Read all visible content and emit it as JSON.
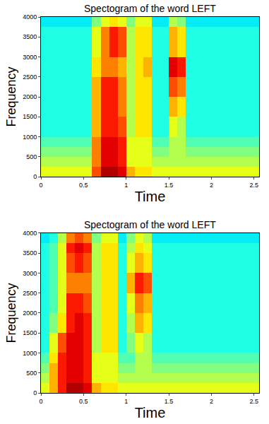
{
  "chart_data": [
    {
      "type": "heatmap",
      "title": "Spectogram of the word LEFT",
      "x_label": "Time",
      "y_label": "Frequency",
      "color": "Jet",
      "xlim": [
        0,
        2.56
      ],
      "ylim": [
        0,
        4000
      ],
      "xticks": [
        0,
        0.5,
        1,
        1.5,
        2,
        2.5
      ],
      "yticks": [
        0,
        500,
        1000,
        1500,
        2000,
        2500,
        3000,
        3500,
        4000
      ],
      "zlim": [
        0,
        10
      ],
      "x": [
        0.05,
        0.15,
        0.25,
        0.35,
        0.45,
        0.55,
        0.65,
        0.75,
        0.85,
        0.95,
        1.05,
        1.15,
        1.25,
        1.35,
        1.45,
        1.55,
        1.65,
        1.75,
        1.85,
        1.95,
        2.05,
        2.15,
        2.25,
        2.35,
        2.45,
        2.55
      ],
      "y": [
        125,
        375,
        625,
        875,
        1125,
        1375,
        1625,
        1875,
        2125,
        2375,
        2625,
        2875,
        3125,
        3375,
        3625,
        3875
      ],
      "z": [
        [
          6,
          6,
          6,
          6,
          6,
          6,
          8,
          9.5,
          9.5,
          9,
          7,
          6.5,
          6.5,
          6,
          6,
          6,
          6,
          6,
          6,
          6,
          6,
          6,
          6,
          6,
          6,
          6
        ],
        [
          5.5,
          5.5,
          5.5,
          5.5,
          5.5,
          5.5,
          7.5,
          9,
          9,
          8.5,
          6,
          6,
          6,
          5.5,
          5.5,
          5.5,
          5.5,
          5.5,
          5.5,
          5.5,
          5.5,
          5.5,
          5.5,
          5.5,
          5.5,
          5.5
        ],
        [
          5,
          5,
          5,
          5,
          5,
          5,
          7.5,
          9,
          9,
          8.5,
          6,
          6,
          6,
          5,
          5,
          5.5,
          5.5,
          5,
          5,
          5,
          5,
          5,
          5,
          5,
          5,
          5
        ],
        [
          4.5,
          4.5,
          4.5,
          4.5,
          4.5,
          4.5,
          7.5,
          9,
          9,
          8.5,
          6,
          6,
          6,
          4.5,
          4.5,
          5.5,
          5.5,
          4.5,
          4.5,
          4.5,
          4.5,
          4.5,
          4.5,
          4.5,
          4.5,
          4.5
        ],
        [
          4,
          4,
          4,
          4,
          4,
          4,
          7,
          8.5,
          8.5,
          8,
          5.5,
          6.5,
          6.5,
          4,
          4,
          6,
          5.5,
          4,
          4,
          4,
          4,
          4,
          4,
          4,
          4,
          4
        ],
        [
          4,
          4,
          4,
          4,
          4,
          4,
          7,
          8.5,
          8.5,
          8,
          5.5,
          6.5,
          6.5,
          4,
          4,
          6,
          5.5,
          4,
          4,
          4,
          4,
          4,
          4,
          4,
          4,
          4
        ],
        [
          4,
          4,
          4,
          4,
          4,
          4,
          7,
          8.5,
          8.5,
          7.5,
          5.5,
          6.5,
          6.5,
          4,
          4,
          7,
          6.5,
          4,
          4,
          4,
          4,
          4,
          4,
          4,
          4,
          4
        ],
        [
          4,
          4,
          4,
          4,
          4,
          4,
          7,
          8.5,
          8.5,
          7.5,
          5.5,
          6.5,
          6.5,
          4,
          4,
          7,
          6.5,
          4,
          4,
          4,
          4,
          4,
          4,
          4,
          4,
          4
        ],
        [
          4,
          4,
          4,
          4,
          4,
          4,
          7,
          8.5,
          8.5,
          7.5,
          5.5,
          6.5,
          6.5,
          4,
          4,
          8,
          7.5,
          4,
          4,
          4,
          4,
          4,
          4,
          4,
          4,
          4
        ],
        [
          4,
          4,
          4,
          4,
          4,
          4,
          7,
          8.5,
          8.5,
          7.5,
          5.5,
          6.5,
          6.5,
          4,
          4,
          8,
          7.5,
          4,
          4,
          4,
          4,
          4,
          4,
          4,
          4,
          4
        ],
        [
          4,
          4,
          4,
          4,
          4,
          4,
          6.5,
          7.5,
          7.5,
          7,
          5.5,
          6.5,
          7,
          4,
          4,
          9,
          8.5,
          4,
          4,
          4,
          4,
          4,
          4,
          4,
          4,
          4
        ],
        [
          4,
          4,
          4,
          4,
          4,
          4,
          6.5,
          7.5,
          7.5,
          7,
          5.5,
          6.5,
          7,
          4,
          4,
          9,
          8.5,
          4,
          4,
          4,
          4,
          4,
          4,
          4,
          4,
          4
        ],
        [
          4,
          4,
          4,
          4,
          4,
          4,
          6,
          7.5,
          8.5,
          8,
          5.5,
          6.5,
          6.5,
          4,
          4,
          7,
          6.5,
          4,
          4,
          4,
          4,
          4,
          4,
          4,
          4,
          4
        ],
        [
          4,
          4,
          4,
          4,
          4,
          4,
          6,
          7.5,
          8.5,
          8,
          5.5,
          6.5,
          6.5,
          4,
          4,
          7,
          6.5,
          4,
          4,
          4,
          4,
          4,
          4,
          4,
          4,
          4
        ],
        [
          4,
          4,
          4,
          4,
          4,
          4,
          6,
          7.5,
          8.5,
          8,
          5.5,
          6.5,
          6.5,
          4,
          4,
          7,
          6.5,
          4,
          4,
          4,
          4,
          4,
          4,
          4,
          4,
          4
        ],
        [
          3.5,
          3.5,
          3.5,
          3.5,
          3.5,
          3.5,
          5,
          6,
          6.5,
          6,
          5,
          6,
          6,
          3.5,
          3.5,
          5.5,
          5,
          3.5,
          3.5,
          3.5,
          3.5,
          3.5,
          3.5,
          3.5,
          3.5,
          3.5
        ]
      ]
    },
    {
      "type": "heatmap",
      "title": "Spectogram of the word LEFT",
      "x_label": "Time",
      "y_label": "Frequency",
      "color": "Jet",
      "xlim": [
        0,
        2.56
      ],
      "ylim": [
        0,
        4000
      ],
      "xticks": [
        0,
        0.5,
        1,
        1.5,
        2,
        2.5
      ],
      "yticks": [
        0,
        500,
        1000,
        1500,
        2000,
        2500,
        3000,
        3500,
        4000
      ],
      "zlim": [
        0,
        10
      ],
      "x": [
        0.05,
        0.15,
        0.25,
        0.35,
        0.45,
        0.55,
        0.65,
        0.75,
        0.85,
        0.95,
        1.05,
        1.15,
        1.25,
        1.35,
        1.45,
        1.55,
        1.65,
        1.75,
        1.85,
        1.95,
        2.05,
        2.15,
        2.25,
        2.35,
        2.45,
        2.55
      ],
      "y": [
        125,
        375,
        625,
        875,
        1125,
        1375,
        1625,
        1875,
        2125,
        2375,
        2625,
        2875,
        3125,
        3375,
        3625,
        3875
      ],
      "z": [
        [
          6,
          7,
          8.5,
          9.5,
          9.5,
          9,
          7,
          6.5,
          6.5,
          6,
          6,
          6,
          6,
          6,
          6,
          6,
          6,
          6,
          6,
          6,
          6,
          6,
          6,
          6,
          6,
          6
        ],
        [
          5.5,
          7,
          8.5,
          9,
          9,
          8.5,
          6,
          6,
          6,
          5.5,
          5.5,
          5.5,
          5.5,
          5.5,
          5.5,
          5.5,
          5.5,
          5.5,
          5.5,
          5.5,
          5.5,
          5.5,
          5.5,
          5.5,
          5.5,
          5.5
        ],
        [
          5,
          7,
          8.5,
          9,
          9,
          8.5,
          6,
          6,
          6,
          5,
          5,
          5.5,
          5.5,
          5,
          5,
          5,
          5,
          5,
          5,
          5,
          5,
          5,
          5,
          5,
          5,
          5
        ],
        [
          4.5,
          6.5,
          8.5,
          9,
          9,
          8.5,
          6,
          6,
          6,
          4.5,
          4.5,
          5.5,
          5.5,
          4.5,
          4.5,
          4.5,
          4.5,
          4.5,
          4.5,
          4.5,
          4.5,
          4.5,
          4.5,
          4.5,
          4.5,
          4.5
        ],
        [
          4,
          6,
          8,
          9,
          9,
          8.5,
          5.5,
          6.5,
          6.5,
          4,
          5,
          6,
          5.5,
          4,
          4,
          4,
          4,
          4,
          4,
          4,
          4,
          4,
          4,
          4,
          4,
          4
        ],
        [
          4,
          6,
          8,
          9,
          9,
          8.5,
          5.5,
          6.5,
          6.5,
          4,
          5,
          6,
          5.5,
          4,
          4,
          4,
          4,
          4,
          4,
          4,
          4,
          4,
          4,
          4,
          4,
          4
        ],
        [
          4,
          5,
          6.5,
          8.5,
          9,
          8.5,
          5.5,
          6.5,
          6.5,
          4,
          5.5,
          7,
          6.5,
          4,
          4,
          4,
          4,
          4,
          4,
          4,
          4,
          4,
          4,
          4,
          4,
          4
        ],
        [
          4,
          5,
          6.5,
          8.5,
          9,
          8.5,
          5.5,
          6.5,
          6.5,
          4,
          5.5,
          7,
          6.5,
          4,
          4,
          4,
          4,
          4,
          4,
          4,
          4,
          4,
          4,
          4,
          4,
          4
        ],
        [
          4,
          4.5,
          6,
          8.5,
          8.5,
          8,
          5.5,
          6.5,
          6.5,
          4,
          6,
          7.5,
          7,
          4,
          4,
          4,
          4,
          4,
          4,
          4,
          4,
          4,
          4,
          4,
          4,
          4
        ],
        [
          4,
          4.5,
          6,
          8.5,
          8.5,
          8,
          5.5,
          6.5,
          6.5,
          4,
          6,
          7.5,
          7,
          4,
          4,
          4,
          4,
          4,
          4,
          4,
          4,
          4,
          4,
          4,
          4,
          4
        ],
        [
          4,
          4.5,
          6,
          7.5,
          7.5,
          7.5,
          5.5,
          6.5,
          6.5,
          4,
          7,
          8.5,
          8,
          4,
          4,
          4,
          4,
          4,
          4,
          4,
          4,
          4,
          4,
          4,
          4,
          4
        ],
        [
          4,
          4.5,
          6,
          7.5,
          7.5,
          7.5,
          5.5,
          6.5,
          6.5,
          4,
          7,
          8.5,
          8,
          4,
          4,
          4,
          4,
          4,
          4,
          4,
          4,
          4,
          4,
          4,
          4,
          4
        ],
        [
          4,
          4.5,
          6,
          8,
          8.5,
          8,
          5.5,
          6.5,
          6.5,
          4,
          6,
          7,
          6.5,
          4,
          4,
          4,
          4,
          4,
          4,
          4,
          4,
          4,
          4,
          4,
          4,
          4
        ],
        [
          4,
          4.5,
          6,
          8,
          8.5,
          8,
          5.5,
          6.5,
          6.5,
          4,
          6,
          7,
          6.5,
          4,
          4,
          4,
          4,
          4,
          4,
          4,
          4,
          4,
          4,
          4,
          4,
          4
        ],
        [
          4,
          4.5,
          6,
          8.5,
          9,
          8.5,
          5.5,
          6.5,
          6.5,
          4,
          5.5,
          6.5,
          6,
          4,
          4,
          4,
          4,
          4,
          4,
          4,
          4,
          4,
          4,
          4,
          4,
          4
        ],
        [
          3.5,
          4,
          5.5,
          7.5,
          8,
          7.5,
          5,
          6,
          6,
          3.5,
          5,
          6,
          5.5,
          3.5,
          3.5,
          3.5,
          3.5,
          3.5,
          3.5,
          3.5,
          3.5,
          3.5,
          3.5,
          3.5,
          3.5,
          3.5
        ]
      ]
    }
  ]
}
